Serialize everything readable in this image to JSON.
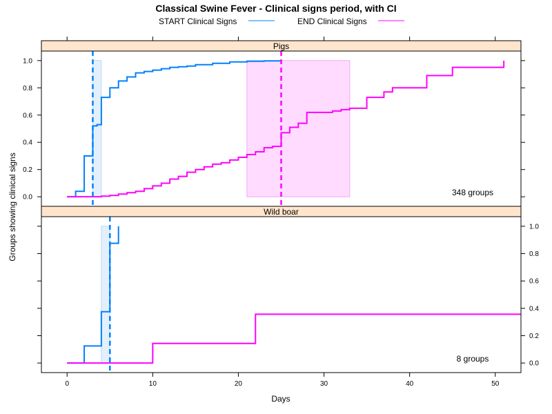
{
  "chart_data": {
    "type": "line",
    "title": "Classical Swine Fever - Clinical signs period, with CI",
    "xlabel": "Days",
    "ylabel": "Groups showing clinical signs",
    "xlim": [
      -3,
      53
    ],
    "xticks": [
      0,
      10,
      20,
      30,
      40,
      50
    ],
    "ylim": [
      -0.07,
      1.07
    ],
    "yticks": [
      "0.0",
      "0.2",
      "0.4",
      "0.6",
      "0.8",
      "1.0"
    ],
    "legend": {
      "placement": "top",
      "entries": [
        {
          "label": "START Clinical Signs",
          "color": "#0080ff"
        },
        {
          "label": "END Clinical Signs",
          "color": "#ff00ff"
        }
      ]
    },
    "panels": [
      {
        "strip": "Pigs",
        "note": "348 groups",
        "y_axis_side": "left",
        "vlines": [
          {
            "series": "START Clinical Signs",
            "x": 3
          },
          {
            "series": "END Clinical Signs",
            "x": 25
          }
        ],
        "ci_bands": [
          {
            "series": "START Clinical Signs",
            "x0": 3,
            "x1": 4,
            "y0": 0,
            "y1": 1
          },
          {
            "series": "END Clinical Signs",
            "x0": 21,
            "x1": 33,
            "y0": 0,
            "y1": 1
          }
        ],
        "series": [
          {
            "name": "START Clinical Signs",
            "color": "#0080ff",
            "x": [
              0,
              1,
              2,
              3,
              3.5,
              4,
              5,
              6,
              7,
              8,
              9,
              10,
              11,
              12,
              13,
              14,
              15,
              17,
              19,
              21,
              23,
              25
            ],
            "y": [
              0,
              0.04,
              0.3,
              0.52,
              0.53,
              0.73,
              0.8,
              0.85,
              0.88,
              0.91,
              0.92,
              0.93,
              0.94,
              0.95,
              0.955,
              0.96,
              0.97,
              0.98,
              0.99,
              0.995,
              0.998,
              1.0
            ]
          },
          {
            "name": "END Clinical Signs",
            "color": "#ff00ff",
            "x": [
              0,
              3,
              4,
              5,
              6,
              7,
              8,
              9,
              10,
              11,
              12,
              13,
              14,
              15,
              16,
              17,
              18,
              19,
              20,
              21,
              22,
              23,
              24,
              25,
              26,
              27,
              28,
              29,
              30,
              31,
              32,
              33,
              35,
              37,
              38,
              40,
              42,
              45,
              51
            ],
            "y": [
              0,
              0,
              0.005,
              0.01,
              0.02,
              0.03,
              0.04,
              0.06,
              0.08,
              0.1,
              0.13,
              0.15,
              0.18,
              0.2,
              0.22,
              0.24,
              0.25,
              0.27,
              0.29,
              0.31,
              0.33,
              0.36,
              0.37,
              0.47,
              0.51,
              0.54,
              0.62,
              0.62,
              0.62,
              0.63,
              0.64,
              0.65,
              0.73,
              0.77,
              0.8,
              0.8,
              0.89,
              0.95,
              1.0
            ]
          }
        ]
      },
      {
        "strip": "Wild boar",
        "note": "8 groups",
        "y_axis_side": "right",
        "vlines": [
          {
            "series": "START Clinical Signs",
            "x": 5
          }
        ],
        "ci_bands": [
          {
            "series": "START Clinical Signs",
            "x0": 4,
            "x1": 5,
            "y0": 0,
            "y1": 1
          }
        ],
        "series": [
          {
            "name": "START Clinical Signs",
            "color": "#0080ff",
            "x": [
              0,
              2,
              4,
              5,
              6
            ],
            "y": [
              0,
              0.125,
              0.375,
              0.875,
              1.0
            ]
          },
          {
            "name": "END Clinical Signs",
            "color": "#ff00ff",
            "x": [
              0,
              10,
              22,
              53
            ],
            "y": [
              0,
              0.143,
              0.357,
              0.357
            ]
          }
        ]
      }
    ]
  }
}
